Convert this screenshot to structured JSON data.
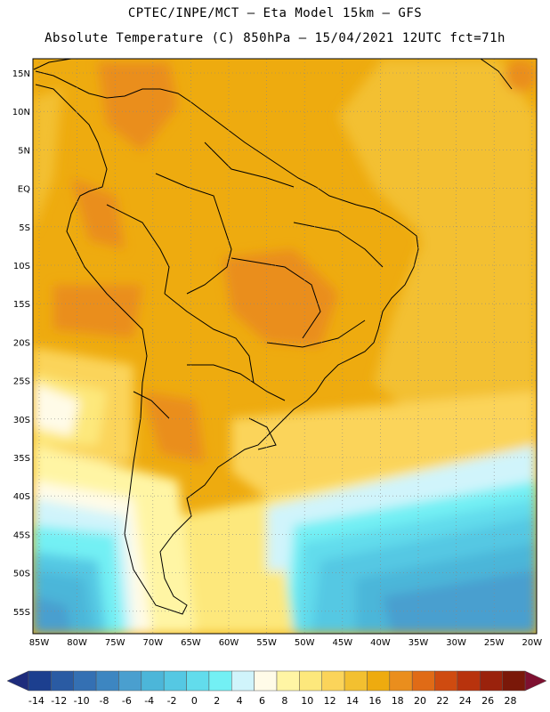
{
  "header": {
    "line1": "CPTEC/INPE/MCT –  Eta Model 15km – GFS",
    "line2": "Absolute Temperature (C) 850hPa – 15/04/2021 12UTC fct=71h"
  },
  "map": {
    "lat_labels": [
      "15N",
      "10N",
      "5N",
      "EQ",
      "5S",
      "10S",
      "15S",
      "20S",
      "25S",
      "30S",
      "35S",
      "40S",
      "45S",
      "50S",
      "55S"
    ],
    "lon_labels": [
      "85W",
      "80W",
      "75W",
      "70W",
      "65W",
      "60W",
      "55W",
      "50W",
      "45W",
      "40W",
      "35W",
      "30W",
      "25W",
      "20W"
    ]
  },
  "colorbar": {
    "labels": [
      "-14",
      "-12",
      "-10",
      "-8",
      "-6",
      "-4",
      "-2",
      "0",
      "2",
      "4",
      "6",
      "8",
      "10",
      "12",
      "14",
      "16",
      "18",
      "20",
      "22",
      "24",
      "26",
      "28"
    ],
    "colors": [
      "#1c3f8f",
      "#2a5ba3",
      "#3470b3",
      "#3d86c1",
      "#4a9fcf",
      "#4cb6d9",
      "#55c8e3",
      "#62dcec",
      "#73f0f4",
      "#d0f4fb",
      "#fffbe8",
      "#fff5a4",
      "#fde87c",
      "#fbd45a",
      "#f3c030",
      "#eeab0f",
      "#ea8e1d",
      "#e06b16",
      "#cf4b10",
      "#b8330d",
      "#9a220c",
      "#7a1809"
    ],
    "min_color": "#1e2c7c",
    "max_color": "#7e1030"
  }
}
